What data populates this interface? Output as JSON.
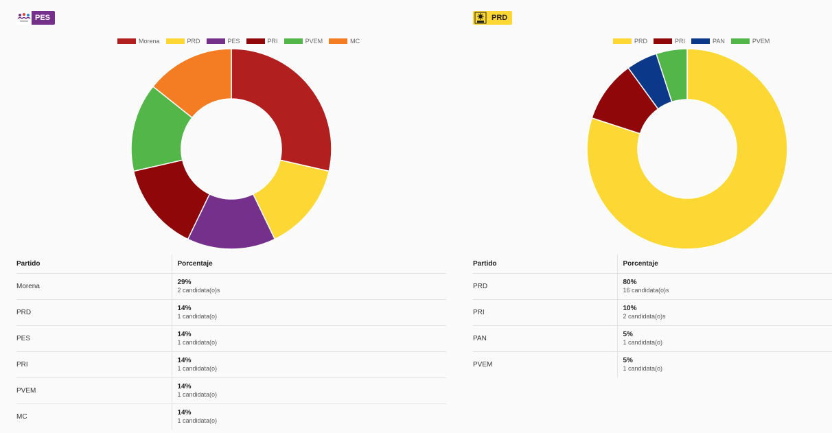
{
  "panels": [
    {
      "badge": {
        "label": "PES",
        "color": "#74308a",
        "text_color": "#ffffff",
        "logo_icon": "pes-logo-icon"
      },
      "table": {
        "header_party": "Partido",
        "header_percent": "Porcentaje"
      },
      "rows": [
        {
          "party": "Morena",
          "percent": "29%",
          "count": "2 candidata(o)s"
        },
        {
          "party": "PRD",
          "percent": "14%",
          "count": "1 candidata(o)"
        },
        {
          "party": "PES",
          "percent": "14%",
          "count": "1 candidata(o)"
        },
        {
          "party": "PRI",
          "percent": "14%",
          "count": "1 candidata(o)"
        },
        {
          "party": "PVEM",
          "percent": "14%",
          "count": "1 candidata(o)"
        },
        {
          "party": "MC",
          "percent": "14%",
          "count": "1 candidata(o)"
        }
      ]
    },
    {
      "badge": {
        "label": "PRD",
        "color": "#fdd835",
        "text_color": "#222222",
        "logo_icon": "prd-logo-icon"
      },
      "table": {
        "header_party": "Partido",
        "header_percent": "Porcentaje"
      },
      "rows": [
        {
          "party": "PRD",
          "percent": "80%",
          "count": "16 candidata(o)s"
        },
        {
          "party": "PRI",
          "percent": "10%",
          "count": "2 candidata(o)s"
        },
        {
          "party": "PAN",
          "percent": "5%",
          "count": "1 candidata(o)"
        },
        {
          "party": "PVEM",
          "percent": "5%",
          "count": "1 candidata(o)"
        }
      ]
    }
  ],
  "chart_data": [
    {
      "type": "pie",
      "variant": "doughnut",
      "legend_position": "top",
      "categories": [
        "Morena",
        "PRD",
        "PES",
        "PRI",
        "PVEM",
        "MC"
      ],
      "values": [
        2,
        1,
        1,
        1,
        1,
        1
      ],
      "colors": [
        "#b1201f",
        "#fdd835",
        "#74308a",
        "#8f0709",
        "#53b649",
        "#f47c23"
      ]
    },
    {
      "type": "pie",
      "variant": "doughnut",
      "legend_position": "top",
      "categories": [
        "PRD",
        "PRI",
        "PAN",
        "PVEM"
      ],
      "values": [
        16,
        2,
        1,
        1
      ],
      "colors": [
        "#fdd835",
        "#8f0709",
        "#0c388a",
        "#53b649"
      ]
    }
  ]
}
